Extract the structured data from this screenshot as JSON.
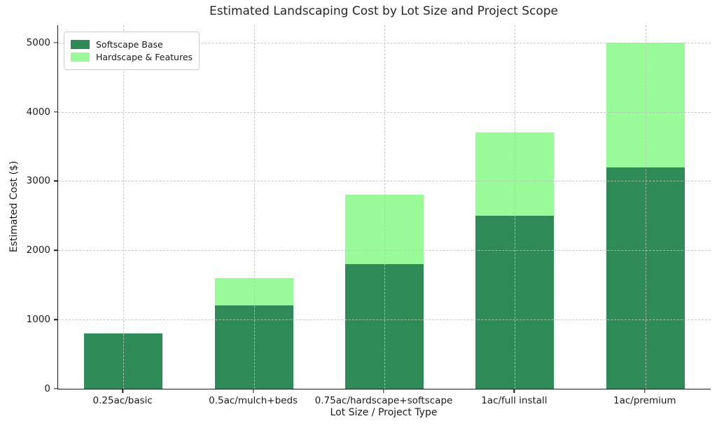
{
  "chart_data": {
    "type": "bar",
    "stacked": true,
    "title": "Estimated Landscaping Cost by Lot Size and Project Scope",
    "xlabel": "Lot Size / Project Type",
    "ylabel": "Estimated Cost ($)",
    "categories": [
      "0.25ac/basic",
      "0.5ac/mulch+beds",
      "0.75ac/hardscape+softscape",
      "1ac/full install",
      "1ac/premium"
    ],
    "series": [
      {
        "name": "Softscape Base",
        "color": "#2E8B57",
        "values": [
          800,
          1200,
          1800,
          2500,
          3200
        ]
      },
      {
        "name": "Hardscape & Features",
        "color": "#98FB98",
        "values": [
          0,
          400,
          1000,
          1200,
          1800
        ]
      }
    ],
    "totals": [
      800,
      1600,
      2800,
      3700,
      5000
    ],
    "yticks": [
      0,
      1000,
      2000,
      3000,
      4000,
      5000
    ],
    "ylim": [
      0,
      5250
    ],
    "grid": true,
    "grid_style": "dashed",
    "legend_position": "upper-left",
    "background_color": "#ffffff",
    "axis_color": "#1a1a1a",
    "grid_color": "#c8c8c8"
  }
}
